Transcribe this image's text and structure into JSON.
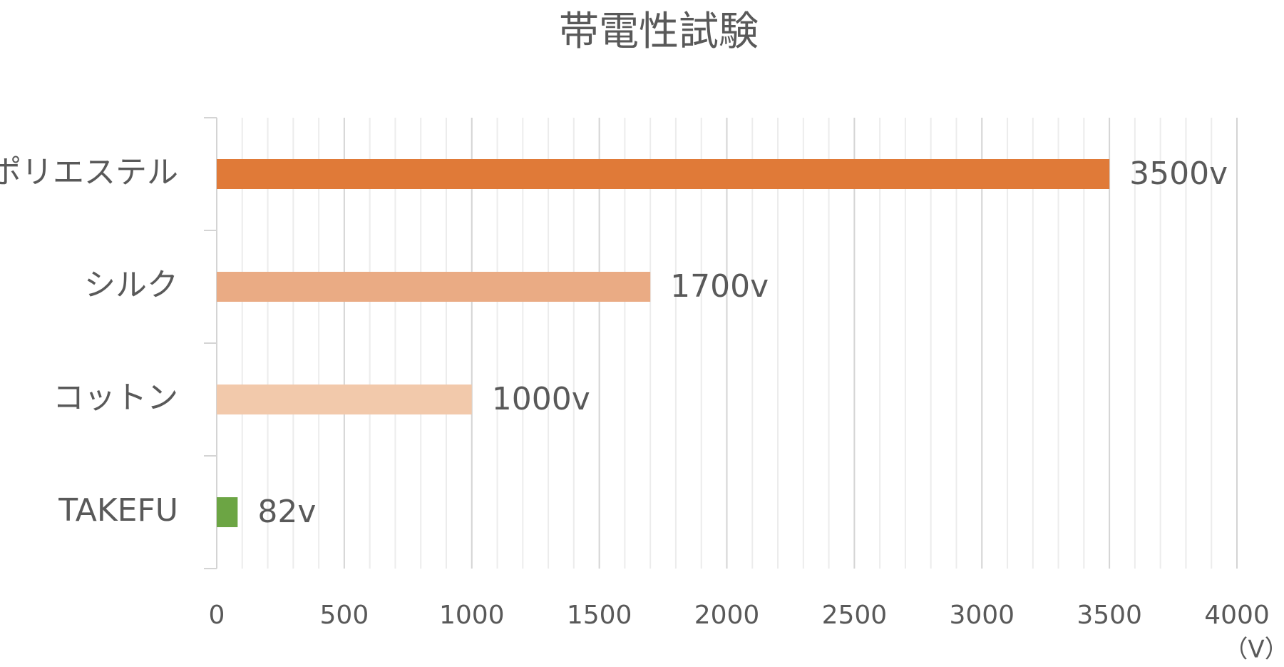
{
  "chart_data": {
    "type": "bar",
    "orientation": "horizontal",
    "title": "帯電性試験",
    "categories": [
      "ポリエステル",
      "シルク",
      "コットン",
      "TAKEFU"
    ],
    "values": [
      3500,
      1700,
      1000,
      82
    ],
    "value_labels": [
      "3500v",
      "1700v",
      "1000v",
      "82v"
    ],
    "colors": [
      "#e07a38",
      "#eaab84",
      "#f2c9ab",
      "#6ca544"
    ],
    "x_unit_label": "（V）",
    "xlim": [
      0,
      4000
    ],
    "xticks": [
      0,
      500,
      1000,
      1500,
      2000,
      2500,
      3000,
      3500,
      4000
    ],
    "xminorticks": [
      100,
      200,
      300,
      400,
      600,
      700,
      800,
      900,
      1100,
      1200,
      1300,
      1400,
      1600,
      1700,
      1800,
      1900,
      2100,
      2200,
      2300,
      2400,
      2600,
      2700,
      2800,
      2900,
      3100,
      3200,
      3300,
      3400,
      3600,
      3700,
      3800,
      3900
    ],
    "grid": true
  }
}
